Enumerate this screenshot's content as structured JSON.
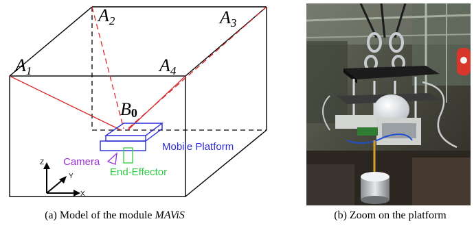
{
  "panel_a": {
    "corner_labels": {
      "a1_main": "A",
      "a1_sub": "1",
      "a2_main": "A",
      "a2_sub": "2",
      "a3_main": "A",
      "a3_sub": "3",
      "a4_main": "A",
      "a4_sub": "4"
    },
    "platform_label_main": "B",
    "platform_label_sub": "0",
    "mobile_platform_label": "Mobile Platform",
    "camera_label": "Camera",
    "end_effector_label": "End-Effector",
    "axes": {
      "z": "Z",
      "y": "Y",
      "x": "X"
    },
    "colors": {
      "cable": "#d62728",
      "platform": "#2b2bd6",
      "camera": "#9b30d9",
      "end_effector": "#2ecc40",
      "frame": "#000000"
    }
  },
  "panel_b": {
    "photo_description_icon": "photo-platform-closeup"
  },
  "captions": {
    "a_prefix": "(a) Model of the module ",
    "a_italic": "MAViS",
    "b": "(b) Zoom on the platform"
  }
}
